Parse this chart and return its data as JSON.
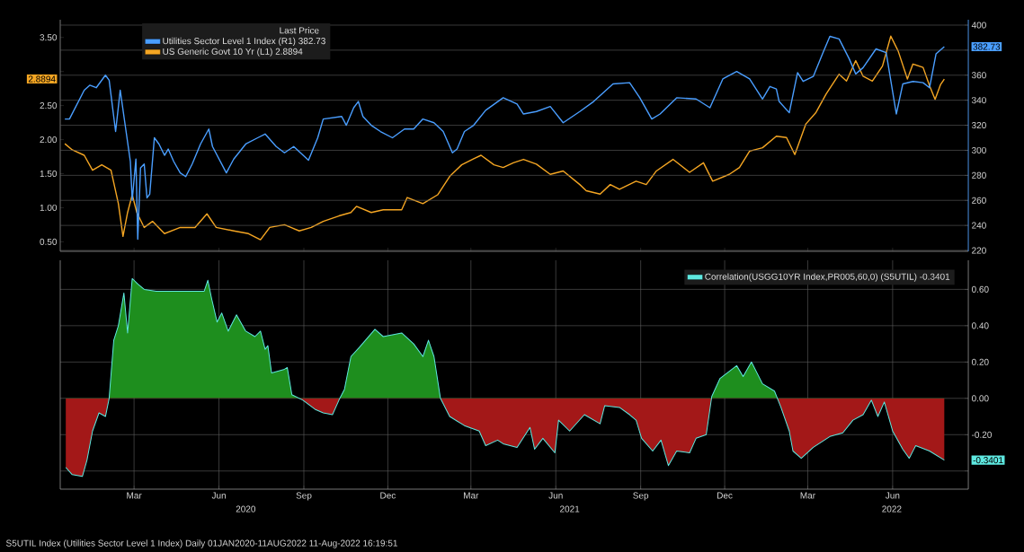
{
  "chart_data": [
    {
      "type": "line",
      "legend_title": "Last Price",
      "legend": "top left",
      "grid": "y",
      "tick_labels": "y",
      "xlim": [
        "2019-12-27",
        "2022-09-06"
      ],
      "xticks": [
        {
          "value": "2020-03-16",
          "label": null
        },
        {
          "value": "2020-06-16",
          "label": null
        },
        {
          "value": "2020-09-16",
          "label": null
        },
        {
          "value": "2020-12-16",
          "label": null
        },
        {
          "value": "2021-03-16",
          "label": null
        },
        {
          "value": "2021-06-16",
          "label": null
        },
        {
          "value": "2021-09-16",
          "label": null
        },
        {
          "value": "2021-12-16",
          "label": null
        },
        {
          "value": "2022-03-16",
          "label": null
        },
        {
          "value": "2022-06-16",
          "label": null
        }
      ],
      "ylim": [
        0.36,
        3.76
      ],
      "yticks": [
        {
          "value": 0.5,
          "label": "0.50"
        },
        {
          "value": 1.0,
          "label": "1.00"
        },
        {
          "value": 1.5,
          "label": "1.50"
        },
        {
          "value": 2.0,
          "label": "2.00"
        },
        {
          "value": 2.5,
          "label": "2.50"
        },
        {
          "value": 2.8894,
          "label": "2.8894"
        },
        {
          "value": 3.0,
          "label": null
        },
        {
          "value": 3.5,
          "label": "3.50"
        }
      ],
      "y2lim": [
        219.3,
        404.3
      ],
      "y2ticks": [
        220,
        240,
        260,
        280,
        300,
        320,
        340,
        360,
        {
          "value": 380,
          "label": null
        },
        {
          "value": 382.73,
          "label": "382.73"
        },
        400
      ],
      "series": [
        {
          "name": "Utilities Sector Level 1 Index  (R1) 382.73",
          "color": "#4a9eff",
          "axis": "y2",
          "x": [
            "2020-01-01",
            "2020-01-06",
            "2020-01-22",
            "2020-01-28",
            "2020-02-04",
            "2020-02-14",
            "2020-02-18",
            "2020-02-25",
            "2020-03-01",
            "2020-03-06",
            "2020-03-12",
            "2020-03-14",
            "2020-03-18",
            "2020-03-20",
            "2020-03-23",
            "2020-03-27",
            "2020-03-30",
            "2020-04-02",
            "2020-04-07",
            "2020-04-12",
            "2020-04-18",
            "2020-04-22",
            "2020-04-28",
            "2020-05-05",
            "2020-05-11",
            "2020-05-18",
            "2020-05-27",
            "2020-06-05",
            "2020-06-09",
            "2020-06-24",
            "2020-07-02",
            "2020-07-15",
            "2020-07-28",
            "2020-08-05",
            "2020-08-17",
            "2020-08-26",
            "2020-09-05",
            "2020-09-21",
            "2020-10-01",
            "2020-10-07",
            "2020-10-27",
            "2020-11-01",
            "2020-11-09",
            "2020-11-14",
            "2020-11-19",
            "2020-11-28",
            "2020-12-08",
            "2020-12-21",
            "2021-01-03",
            "2021-01-13",
            "2021-01-23",
            "2021-02-04",
            "2021-02-14",
            "2021-02-24",
            "2021-03-01",
            "2021-03-09",
            "2021-03-19",
            "2021-04-01",
            "2021-04-20",
            "2021-05-05",
            "2021-05-12",
            "2021-05-26",
            "2021-06-10",
            "2021-06-24",
            "2021-07-12",
            "2021-07-27",
            "2021-08-17",
            "2021-09-04",
            "2021-09-15",
            "2021-09-28",
            "2021-10-07",
            "2021-10-25",
            "2021-11-15",
            "2021-11-30",
            "2021-12-14",
            "2021-12-29",
            "2022-01-12",
            "2022-01-26",
            "2022-02-03",
            "2022-02-10",
            "2022-02-13",
            "2022-02-24",
            "2022-03-05",
            "2022-03-11",
            "2022-03-22",
            "2022-04-01",
            "2022-04-09",
            "2022-04-19",
            "2022-04-30",
            "2022-05-07",
            "2022-05-15",
            "2022-05-29",
            "2022-06-09",
            "2022-06-20",
            "2022-06-27",
            "2022-07-08",
            "2022-07-19",
            "2022-07-26",
            "2022-08-02",
            "2022-08-11"
          ],
          "values": [
            325,
            325,
            348,
            352,
            350,
            360,
            356,
            315,
            348,
            322,
            291,
            260,
            293,
            229,
            286,
            289,
            262,
            265,
            310,
            305,
            296,
            301,
            291,
            282,
            279,
            289,
            305,
            317,
            303,
            282,
            293,
            305,
            310,
            313,
            303,
            298,
            303,
            292,
            310,
            325,
            327,
            320,
            334,
            339,
            327,
            320,
            315,
            310,
            317,
            317,
            325,
            322,
            315,
            298,
            301,
            315,
            320,
            332,
            342,
            337,
            329,
            331,
            335,
            322,
            331,
            339,
            353,
            354,
            342,
            325,
            329,
            342,
            341,
            334,
            357,
            363,
            357,
            341,
            351,
            349,
            339,
            330,
            362,
            355,
            359,
            377,
            391,
            389,
            373,
            361,
            366,
            381,
            378,
            329,
            353,
            355,
            354,
            350,
            377,
            382.73
          ]
        },
        {
          "name": "US Generic Govt 10 Yr  (L1) 2.8894",
          "color": "#f5a623",
          "axis": "y",
          "x": [
            "2020-01-01",
            "2020-01-09",
            "2020-01-22",
            "2020-01-31",
            "2020-02-10",
            "2020-02-20",
            "2020-02-28",
            "2020-03-04",
            "2020-03-09",
            "2020-03-14",
            "2020-03-19",
            "2020-03-27",
            "2020-04-05",
            "2020-04-18",
            "2020-05-05",
            "2020-05-21",
            "2020-06-03",
            "2020-06-13",
            "2020-07-02",
            "2020-07-18",
            "2020-07-31",
            "2020-08-10",
            "2020-08-26",
            "2020-09-11",
            "2020-09-24",
            "2020-10-07",
            "2020-10-24",
            "2020-11-06",
            "2020-11-12",
            "2020-11-28",
            "2020-12-11",
            "2020-12-31",
            "2021-01-06",
            "2021-01-23",
            "2021-02-08",
            "2021-02-21",
            "2021-03-06",
            "2021-03-19",
            "2021-03-27",
            "2021-04-10",
            "2021-04-20",
            "2021-05-01",
            "2021-05-12",
            "2021-05-26",
            "2021-06-10",
            "2021-06-24",
            "2021-07-12",
            "2021-07-19",
            "2021-08-03",
            "2021-08-14",
            "2021-08-24",
            "2021-09-11",
            "2021-09-22",
            "2021-10-03",
            "2021-10-21",
            "2021-11-08",
            "2021-11-23",
            "2021-12-03",
            "2021-12-21",
            "2022-01-01",
            "2022-01-12",
            "2022-01-26",
            "2022-02-10",
            "2022-02-21",
            "2022-03-02",
            "2022-03-14",
            "2022-03-25",
            "2022-04-05",
            "2022-04-19",
            "2022-04-27",
            "2022-05-07",
            "2022-05-15",
            "2022-05-25",
            "2022-06-05",
            "2022-06-14",
            "2022-06-22",
            "2022-07-02",
            "2022-07-08",
            "2022-07-19",
            "2022-07-26",
            "2022-08-01",
            "2022-08-07",
            "2022-08-11"
          ],
          "values": [
            1.94,
            1.85,
            1.77,
            1.55,
            1.63,
            1.55,
            1.06,
            0.58,
            0.93,
            1.19,
            0.93,
            0.71,
            0.8,
            0.62,
            0.71,
            0.71,
            0.91,
            0.71,
            0.66,
            0.62,
            0.53,
            0.71,
            0.75,
            0.66,
            0.71,
            0.8,
            0.88,
            0.93,
            1.02,
            0.93,
            0.97,
            0.97,
            1.15,
            1.06,
            1.19,
            1.46,
            1.63,
            1.72,
            1.77,
            1.63,
            1.59,
            1.66,
            1.71,
            1.64,
            1.49,
            1.54,
            1.34,
            1.25,
            1.2,
            1.34,
            1.27,
            1.39,
            1.34,
            1.54,
            1.71,
            1.52,
            1.66,
            1.39,
            1.49,
            1.59,
            1.83,
            1.88,
            2.05,
            2.03,
            1.78,
            2.23,
            2.4,
            2.67,
            2.96,
            2.86,
            3.16,
            2.93,
            2.86,
            3.08,
            3.52,
            3.3,
            2.89,
            3.11,
            3.06,
            2.79,
            2.59,
            2.81,
            2.8894
          ]
        }
      ]
    },
    {
      "type": "area",
      "legend": "top right",
      "grid": true,
      "xlim": [
        "2019-12-27",
        "2022-09-06"
      ],
      "xticks": [
        {
          "value": "2020-03-16",
          "label": "Mar"
        },
        {
          "value": "2020-06-16",
          "label": "Jun"
        },
        {
          "value": "2020-09-16",
          "label": "Sep"
        },
        {
          "value": "2020-12-16",
          "label": "Dec"
        },
        {
          "value": "2021-03-16",
          "label": "Mar"
        },
        {
          "value": "2021-06-16",
          "label": "Jun"
        },
        {
          "value": "2021-09-16",
          "label": "Sep"
        },
        {
          "value": "2021-12-16",
          "label": "Dec"
        },
        {
          "value": "2022-03-16",
          "label": "Mar"
        },
        {
          "value": "2022-06-16",
          "label": "Jun"
        }
      ],
      "ylim": [
        -0.5,
        0.76
      ],
      "yticks": [
        {
          "value": -0.4,
          "label": null
        },
        {
          "value": -0.3401,
          "label": "-0.3401"
        },
        {
          "value": -0.2,
          "label": "-0.20"
        },
        {
          "value": 0.0,
          "label": "0.00"
        },
        {
          "value": 0.2,
          "label": "0.20"
        },
        {
          "value": 0.4,
          "label": "0.40"
        },
        {
          "value": 0.6,
          "label": "0.60"
        }
      ],
      "series": [
        {
          "name": "Correlation(USGG10YR Index,PR005,60,0) (S5UTIL) -0.3401",
          "color": "#5ee8e0",
          "x": [
            "2020-01-02",
            "2020-01-09",
            "2020-01-20",
            "2020-01-25",
            "2020-01-31",
            "2020-02-07",
            "2020-02-14",
            "2020-02-18",
            "2020-02-23",
            "2020-02-28",
            "2020-03-05",
            "2020-03-09",
            "2020-03-14",
            "2020-03-20",
            "2020-03-27",
            "2020-04-09",
            "2020-04-28",
            "2020-05-31",
            "2020-06-04",
            "2020-06-08",
            "2020-06-14",
            "2020-06-19",
            "2020-06-26",
            "2020-07-05",
            "2020-07-15",
            "2020-07-25",
            "2020-07-31",
            "2020-08-05",
            "2020-08-08",
            "2020-08-12",
            "2020-08-26",
            "2020-08-29",
            "2020-09-03",
            "2020-09-15",
            "2020-09-28",
            "2020-10-07",
            "2020-10-17",
            "2020-10-24",
            "2020-10-30",
            "2020-11-06",
            "2020-11-15",
            "2020-12-02",
            "2020-12-11",
            "2020-12-31",
            "2021-01-13",
            "2021-01-23",
            "2021-01-29",
            "2021-02-04",
            "2021-02-11",
            "2021-02-21",
            "2021-03-09",
            "2021-03-25",
            "2021-04-01",
            "2021-04-14",
            "2021-04-20",
            "2021-05-05",
            "2021-05-19",
            "2021-05-24",
            "2021-06-02",
            "2021-06-15",
            "2021-06-19",
            "2021-07-01",
            "2021-07-17",
            "2021-08-03",
            "2021-08-08",
            "2021-08-24",
            "2021-09-04",
            "2021-09-11",
            "2021-09-17",
            "2021-09-29",
            "2021-10-08",
            "2021-10-16",
            "2021-10-25",
            "2021-11-08",
            "2021-11-15",
            "2021-11-26",
            "2021-12-02",
            "2021-12-11",
            "2021-12-29",
            "2022-01-05",
            "2022-01-14",
            "2022-01-26",
            "2022-02-08",
            "2022-02-15",
            "2022-02-24",
            "2022-02-28",
            "2022-03-09",
            "2022-03-22",
            "2022-04-09",
            "2022-04-23",
            "2022-05-04",
            "2022-05-15",
            "2022-05-24",
            "2022-05-31",
            "2022-06-07",
            "2022-06-16",
            "2022-06-27",
            "2022-07-04",
            "2022-07-11",
            "2022-07-26",
            "2022-08-11"
          ],
          "values": [
            -0.38,
            -0.42,
            -0.43,
            -0.34,
            -0.18,
            -0.08,
            -0.1,
            0.0,
            0.32,
            0.4,
            0.58,
            0.36,
            0.66,
            0.63,
            0.6,
            0.59,
            0.59,
            0.59,
            0.65,
            0.55,
            0.42,
            0.47,
            0.37,
            0.46,
            0.37,
            0.34,
            0.37,
            0.27,
            0.29,
            0.14,
            0.16,
            0.17,
            0.02,
            -0.01,
            -0.06,
            -0.08,
            -0.09,
            -0.01,
            0.05,
            0.23,
            0.28,
            0.38,
            0.34,
            0.36,
            0.3,
            0.23,
            0.32,
            0.23,
            0.0,
            -0.1,
            -0.15,
            -0.18,
            -0.26,
            -0.23,
            -0.25,
            -0.27,
            -0.16,
            -0.28,
            -0.22,
            -0.3,
            -0.12,
            -0.18,
            -0.09,
            -0.14,
            -0.04,
            -0.05,
            -0.09,
            -0.12,
            -0.22,
            -0.29,
            -0.23,
            -0.37,
            -0.29,
            -0.3,
            -0.22,
            -0.2,
            0.01,
            0.11,
            0.18,
            0.12,
            0.2,
            0.08,
            0.04,
            -0.05,
            -0.18,
            -0.29,
            -0.33,
            -0.27,
            -0.21,
            -0.19,
            -0.12,
            -0.09,
            -0.01,
            -0.1,
            -0.02,
            -0.18,
            -0.28,
            -0.33,
            -0.26,
            -0.29,
            -0.3401
          ]
        }
      ],
      "x2lim": [
        "2019-12-27",
        "2022-09-06"
      ],
      "x2ticks": [
        {
          "value": "2020-07-15",
          "label": "2020"
        },
        {
          "value": "2021-07-01",
          "label": "2021"
        },
        {
          "value": "2022-06-15",
          "label": "2022"
        }
      ],
      "annotations": [
        "S5UTIL Index (Utilities Sector Level 1 Index)  Daily 01JAN2020-11AUG2022    11-Aug-2022 16:19:51"
      ]
    }
  ]
}
